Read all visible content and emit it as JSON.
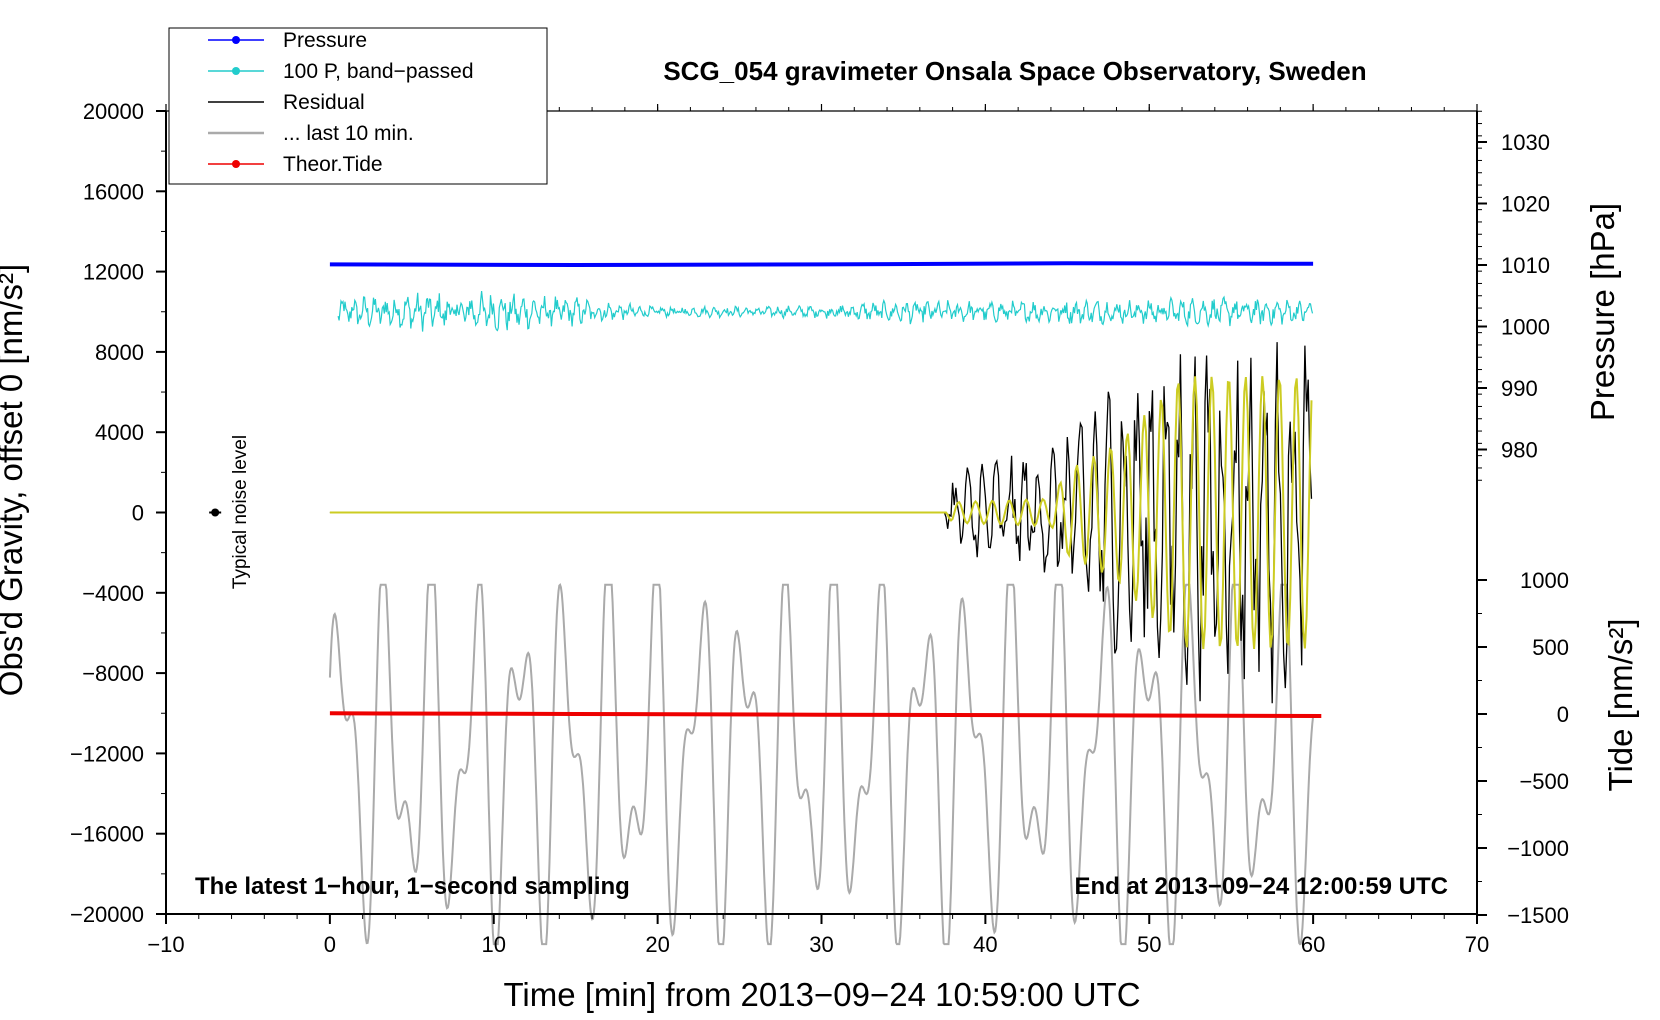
{
  "chart_data": {
    "type": "line",
    "title": "SCG_054 gravimeter Onsala Space Observatory, Sweden",
    "xlabel": "Time [min] from 2013−09−24 10:59:00 UTC",
    "ylabel_left": "Obs'd Gravity, offset 0 [nm/s²]",
    "ylabel_right_top": "Pressure [hPa]",
    "ylabel_right_bottom": "Tide [nm/s²]",
    "xlim": [
      -10,
      70
    ],
    "ylim_left": [
      -20000,
      20000
    ],
    "x_ticks": [
      -10,
      0,
      10,
      20,
      30,
      40,
      50,
      60,
      70
    ],
    "x_tick_labels": [
      "−10",
      "0",
      "10",
      "20",
      "30",
      "40",
      "50",
      "60",
      "70"
    ],
    "y_left_ticks": [
      20000,
      16000,
      12000,
      8000,
      4000,
      0,
      -4000,
      -8000,
      -12000,
      -16000,
      -20000
    ],
    "y_left_tick_labels": [
      "20000",
      "16000",
      "12000",
      "8000",
      "4000",
      "0",
      "−4000",
      "−8000",
      "−12000",
      "−16000",
      "−20000"
    ],
    "pressure_axis": {
      "ticks": [
        1030,
        1020,
        1010,
        1000,
        990,
        980
      ],
      "tick_labels": [
        "1030",
        "1020",
        "1010",
        "1000",
        "990",
        "980"
      ],
      "range_visible": [
        975,
        1035
      ]
    },
    "tide_axis": {
      "ticks": [
        1000,
        500,
        0,
        -500,
        -1000,
        -1500
      ],
      "tick_labels": [
        "1000",
        "500",
        "0",
        "−500",
        "−1000",
        "−1500"
      ],
      "range": [
        -1500,
        1000
      ]
    },
    "annotations": {
      "bottom_left": "The latest 1−hour, 1−second sampling",
      "bottom_right": "End at 2013−09−24 12:00:59 UTC",
      "noise": "Typical noise level"
    },
    "noise_marker": {
      "x": -7,
      "y": 0
    },
    "legend": {
      "position": "top-left",
      "entries": [
        {
          "label": "Pressure",
          "color": "#0000ff",
          "marker": true
        },
        {
          "label": "100 P, band−passed",
          "color": "#22cccc",
          "marker": true
        },
        {
          "label": "Residual",
          "color": "#000000",
          "marker": false
        },
        {
          "label": "... last 10 min.",
          "color": "#aaaaaa",
          "marker": false
        },
        {
          "label": "Theor.Tide",
          "color": "#ee0000",
          "marker": true
        }
      ]
    },
    "series": [
      {
        "name": "Pressure",
        "axis": "pressure",
        "color": "#0000ff",
        "x": [
          0,
          15,
          30,
          45,
          60
        ],
        "values": [
          1010.1,
          1010.0,
          1010.1,
          1010.3,
          1010.2
        ]
      },
      {
        "name": "100 P, band−passed",
        "axis": "left",
        "color": "#22cccc",
        "x_range": [
          0.5,
          60
        ],
        "mean": 10000,
        "amplitude_envelope": {
          "x": [
            0.5,
            5,
            10,
            15,
            20,
            30,
            35,
            40,
            45,
            50,
            55,
            60
          ],
          "values": [
            700,
            900,
            1000,
            700,
            250,
            300,
            600,
            500,
            600,
            650,
            700,
            600
          ]
        }
      },
      {
        "name": "Theor.Tide",
        "axis": "tide",
        "color": "#ee0000",
        "x": [
          0,
          15,
          30,
          45,
          60.5
        ],
        "values": [
          5,
          0,
          -5,
          -10,
          -15
        ]
      },
      {
        "name": "Residual",
        "axis": "left",
        "color": "#000000",
        "x_range": [
          0,
          60
        ],
        "amplitude_envelope": {
          "x": [
            0,
            37.5,
            38,
            40,
            44,
            45,
            47,
            50,
            55,
            60
          ],
          "values": [
            0,
            0,
            2000,
            3000,
            3500,
            5000,
            7000,
            9000,
            9500,
            9500
          ]
        }
      },
      {
        "name": "Residual filtered (yellow)",
        "axis": "left",
        "color": "#cccc22",
        "x_range": [
          0,
          60
        ],
        "amplitude_envelope": {
          "x": [
            0,
            37.5,
            38,
            44,
            45,
            48,
            52,
            60
          ],
          "values": [
            0,
            0,
            600,
            800,
            2500,
            4000,
            8000,
            8000
          ]
        }
      },
      {
        "name": "... last 10 min.",
        "axis": "left",
        "color": "#aaaaaa",
        "x_range": [
          0,
          60
        ],
        "mean": -12000,
        "amplitude": 9000
      }
    ]
  }
}
